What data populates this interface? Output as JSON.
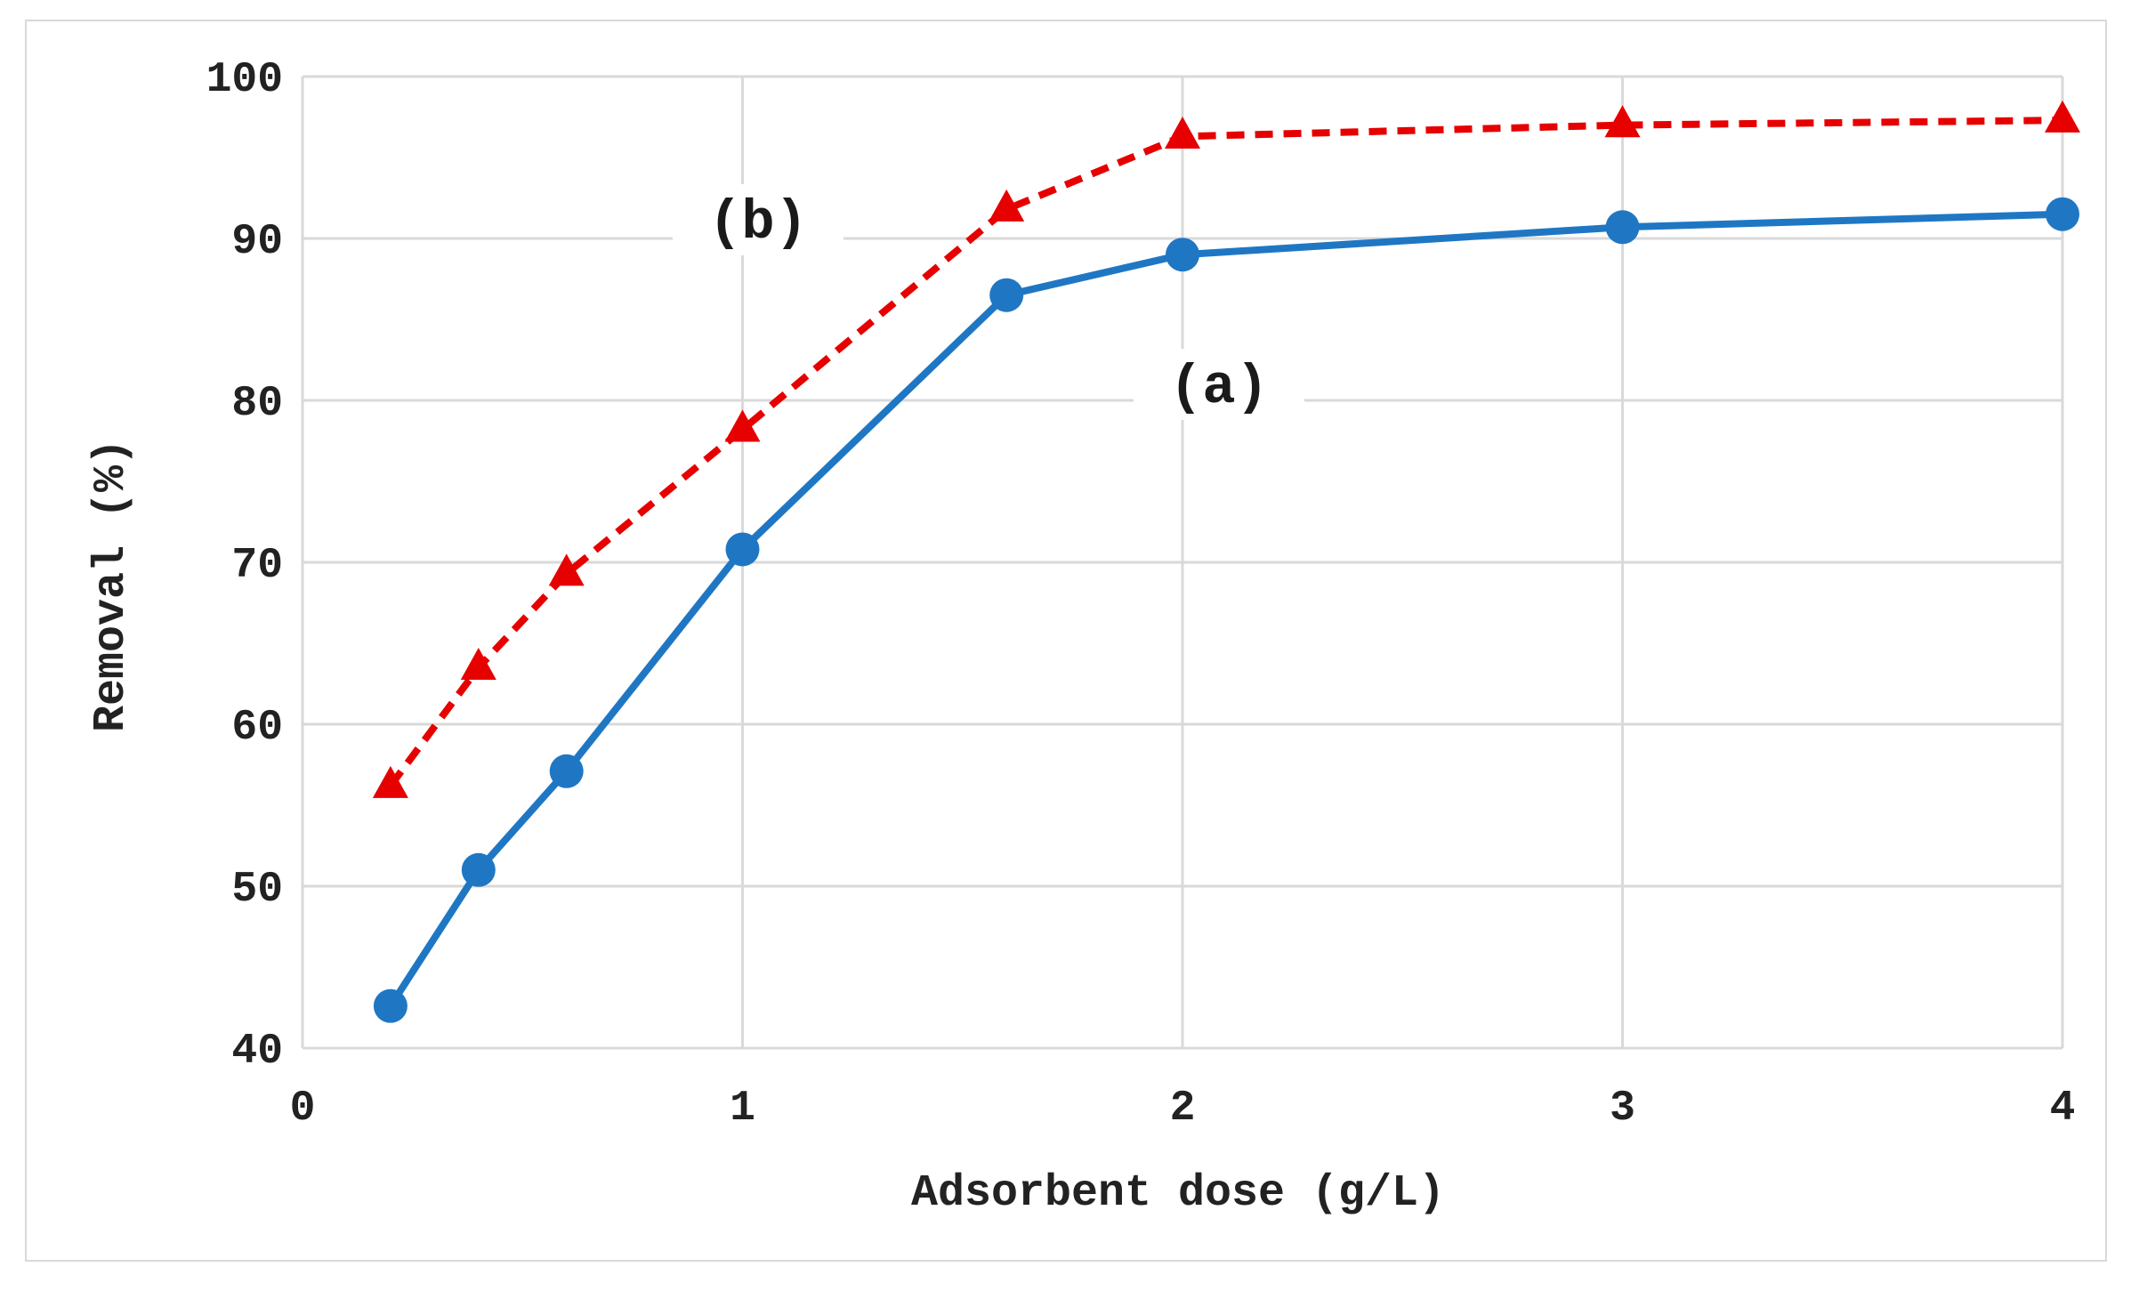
{
  "chart_data": {
    "type": "line",
    "title": "",
    "xlabel": "Adsorbent dose (g/L)",
    "ylabel": "Removal (%)",
    "xlim": [
      0,
      4
    ],
    "ylim": [
      40,
      100
    ],
    "x_ticks": [
      "0",
      "1",
      "2",
      "3",
      "4"
    ],
    "y_ticks": [
      "40",
      "50",
      "60",
      "70",
      "80",
      "90",
      "100"
    ],
    "grid": true,
    "legend": "none",
    "series": [
      {
        "label": "(a)",
        "color": "#1f77c4",
        "marker": "circle",
        "line_style": "solid",
        "x": [
          0.2,
          0.4,
          0.6,
          1.0,
          1.6,
          2.0,
          3.0,
          4.0
        ],
        "y": [
          42.6,
          51.0,
          57.1,
          70.8,
          86.5,
          89.0,
          90.7,
          91.5
        ]
      },
      {
        "label": "(b)",
        "color": "#e60000",
        "marker": "triangle",
        "line_style": "dashed",
        "x": [
          0.2,
          0.4,
          0.6,
          1.0,
          1.6,
          2.0,
          3.0,
          4.0
        ],
        "y": [
          56.2,
          63.5,
          69.3,
          78.2,
          91.8,
          96.3,
          97.0,
          97.3
        ]
      }
    ]
  }
}
